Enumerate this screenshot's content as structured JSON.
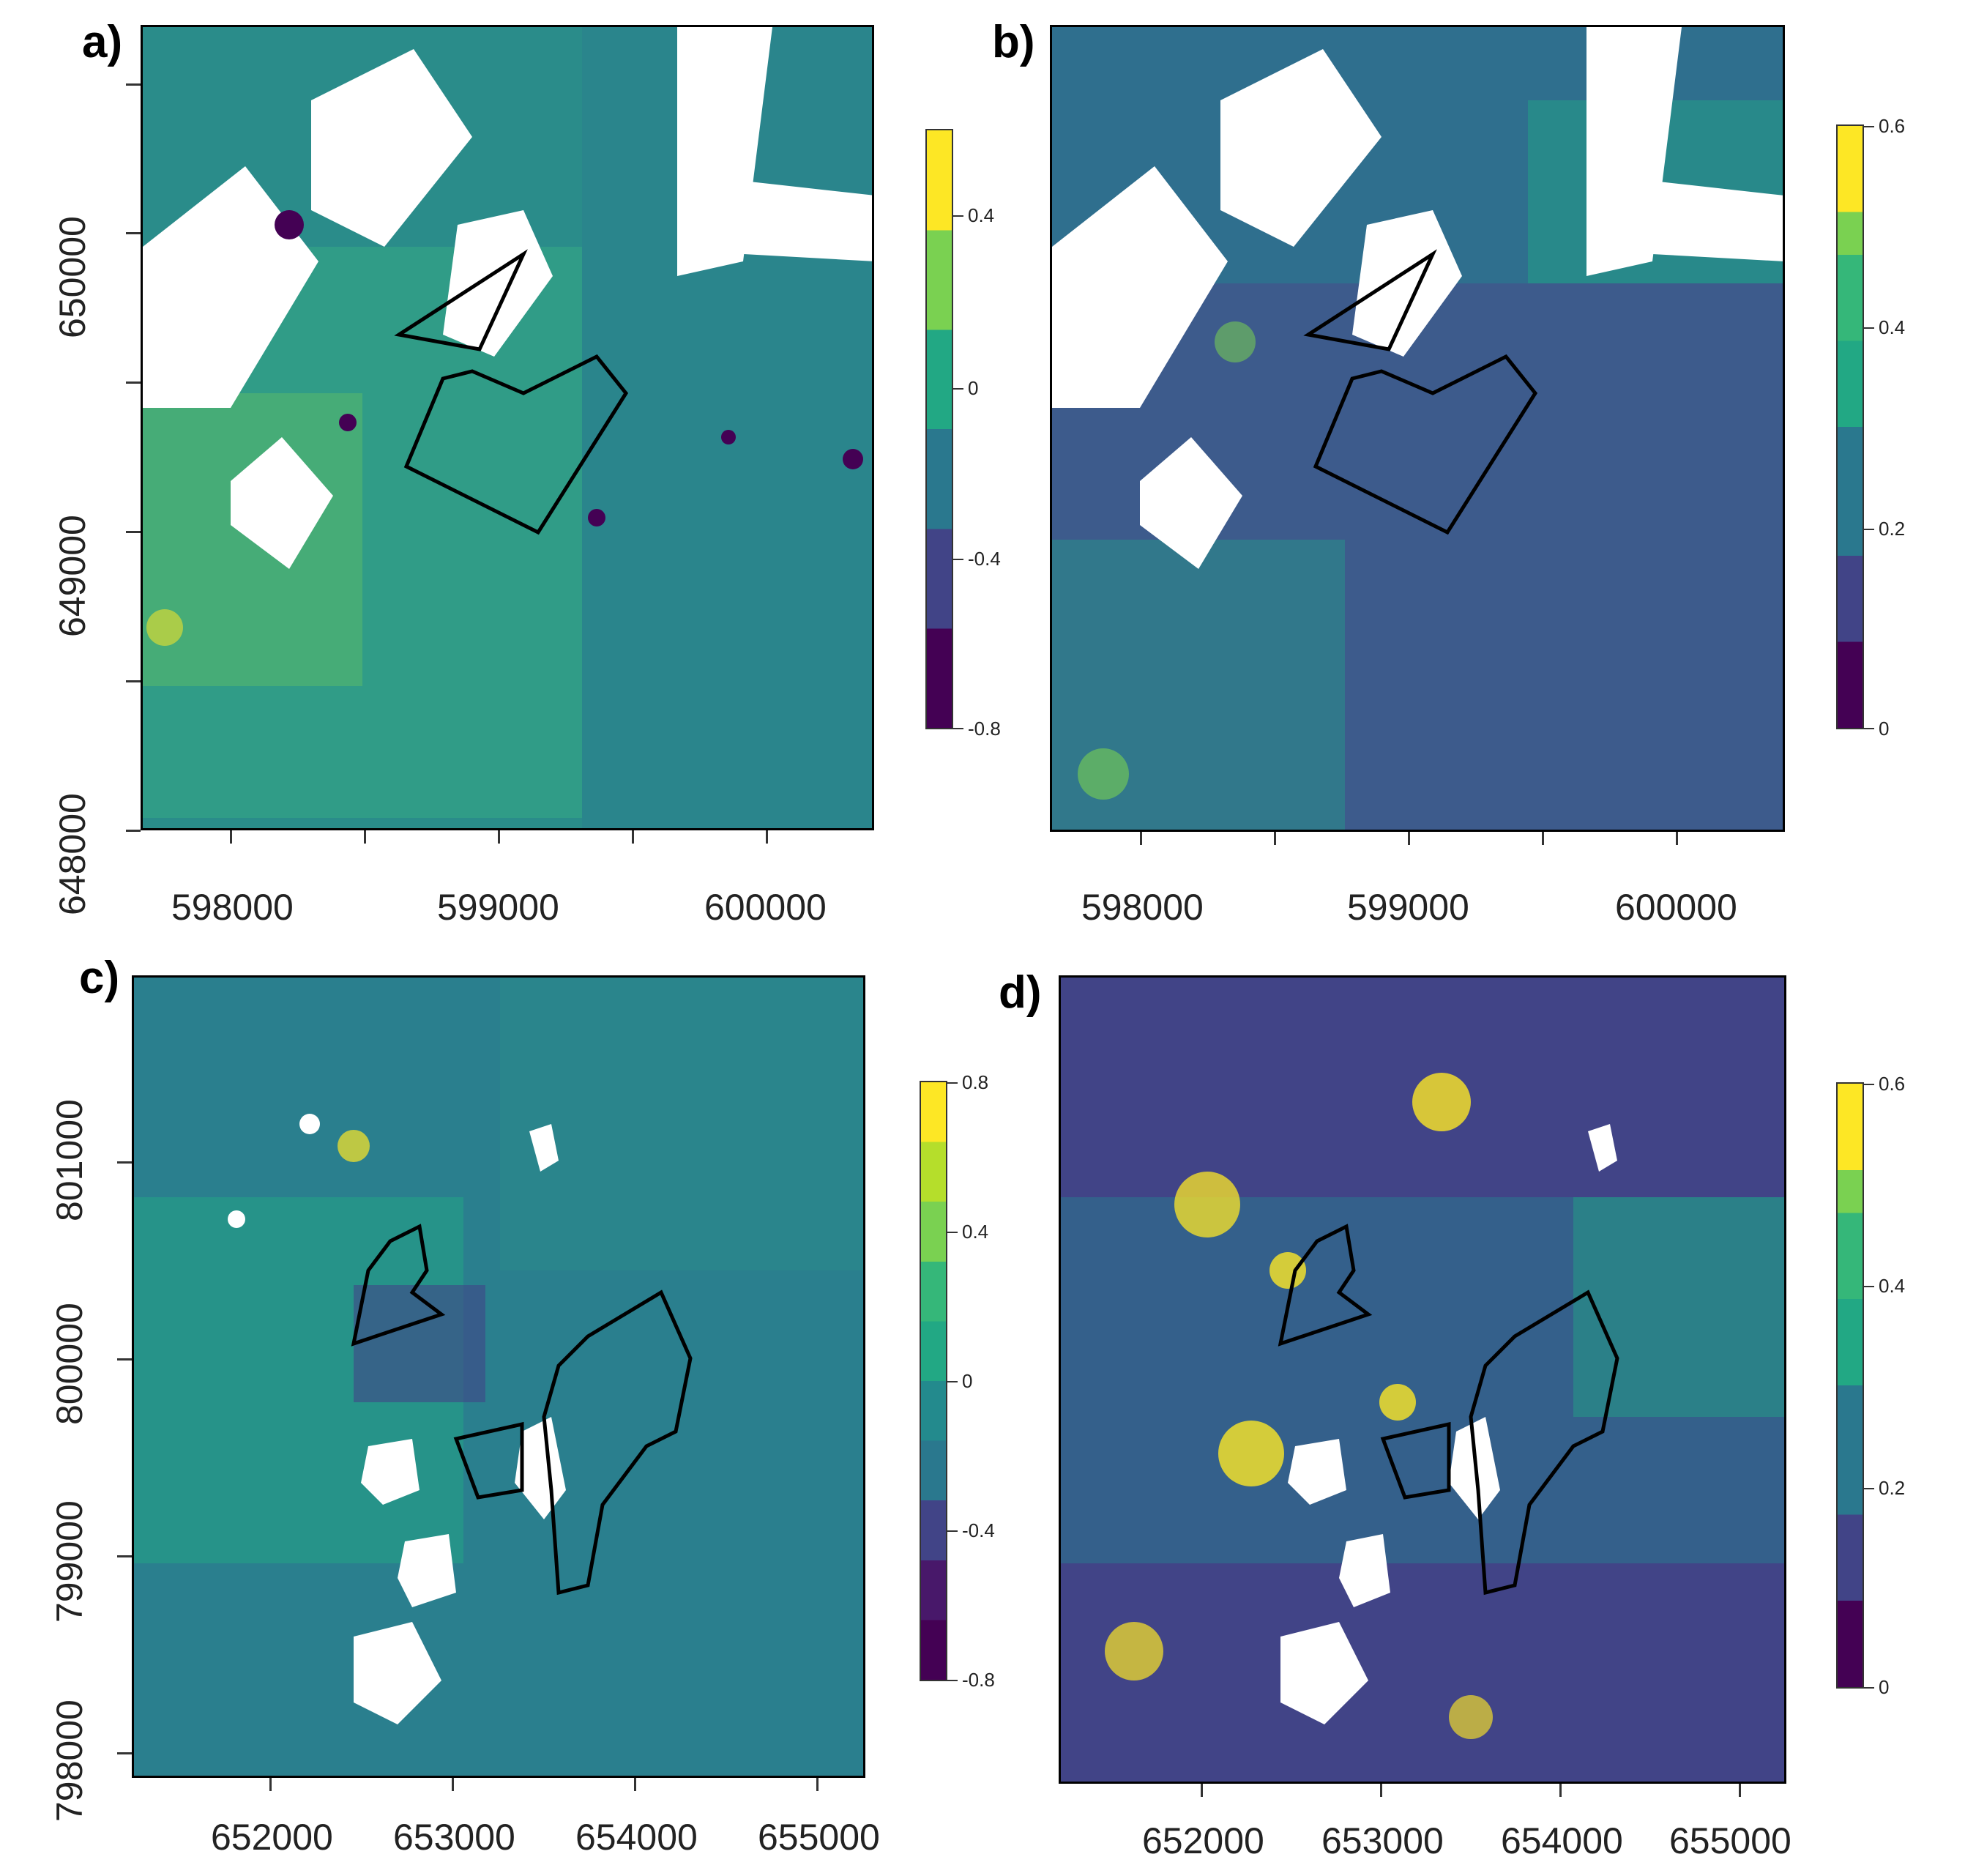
{
  "palette": [
    "#440154",
    "#414487",
    "#2a788e",
    "#22a884",
    "#7ad151",
    "#fde725"
  ],
  "panels": [
    {
      "id": "a",
      "label": "a)",
      "x_ticks": [
        "598000",
        "599000",
        "600000"
      ],
      "y_ticks": [
        "648000",
        "649000",
        "650000"
      ],
      "colorbar": {
        "ticks": [
          "0.4",
          "0",
          "-0.4",
          "-0.8"
        ]
      }
    },
    {
      "id": "b",
      "label": "b)",
      "x_ticks": [
        "598000",
        "599000",
        "600000"
      ],
      "y_ticks": [],
      "colorbar": {
        "ticks": [
          "0.6",
          "0.4",
          "0.2",
          "0"
        ]
      }
    },
    {
      "id": "c",
      "label": "c)",
      "x_ticks": [
        "652000",
        "653000",
        "654000",
        "655000"
      ],
      "y_ticks": [
        "798000",
        "799000",
        "800000",
        "801000"
      ],
      "colorbar": {
        "ticks": [
          "0.8",
          "0.4",
          "0",
          "-0.4",
          "-0.8"
        ]
      }
    },
    {
      "id": "d",
      "label": "d)",
      "x_ticks": [
        "652000",
        "653000",
        "654000",
        "655000"
      ],
      "y_ticks": [],
      "colorbar": {
        "ticks": [
          "0.6",
          "0.4",
          "0.2",
          "0"
        ]
      }
    }
  ]
}
